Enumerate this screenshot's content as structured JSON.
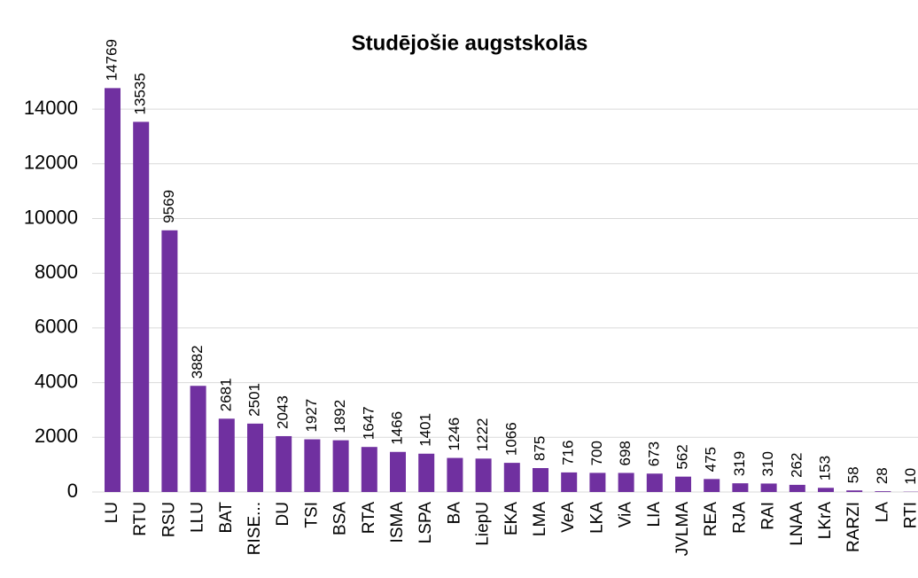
{
  "chart_data": {
    "type": "bar",
    "title": "Studējošie augstskolās",
    "categories": [
      "LU",
      "RTU",
      "RSU",
      "LLU",
      "BAT",
      "RISE...",
      "DU",
      "TSI",
      "BSA",
      "RTA",
      "ISMA",
      "LSPA",
      "BA",
      "LiepU",
      "EKA",
      "LMA",
      "VeA",
      "LKA",
      "ViA",
      "LIA",
      "JVLMA",
      "REA",
      "RJA",
      "RAI",
      "LNAA",
      "LKrA",
      "RARZI",
      "LA",
      "RTI"
    ],
    "values": [
      14769,
      13535,
      9569,
      3882,
      2681,
      2501,
      2043,
      1927,
      1892,
      1647,
      1466,
      1401,
      1246,
      1222,
      1066,
      875,
      716,
      700,
      698,
      673,
      562,
      475,
      319,
      310,
      262,
      153,
      58,
      28,
      10
    ],
    "color": "#7030a0",
    "ylim": [
      0,
      16000
    ],
    "yticks": [
      0,
      2000,
      4000,
      6000,
      8000,
      10000,
      12000,
      14000
    ],
    "grid": true
  }
}
